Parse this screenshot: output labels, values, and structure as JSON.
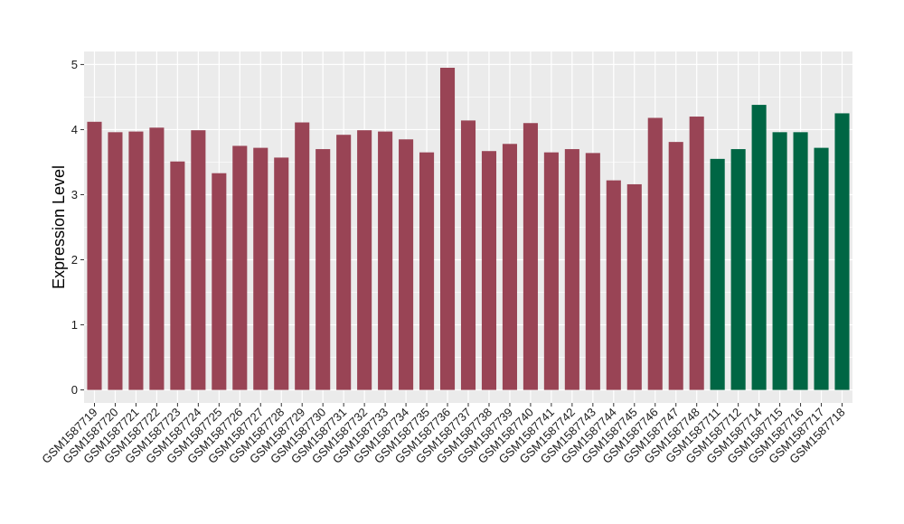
{
  "chart_data": {
    "type": "bar",
    "title": "",
    "xlabel": "",
    "ylabel": "Expression Level",
    "ylim": [
      -0.2,
      5.2
    ],
    "yticks": [
      0,
      1,
      2,
      3,
      4,
      5
    ],
    "grid": true,
    "panel_background": "#ebebeb",
    "colors": {
      "group_a": "#994455",
      "group_b": "#006644"
    },
    "categories": [
      "GSM1587719",
      "GSM1587720",
      "GSM1587721",
      "GSM1587722",
      "GSM1587723",
      "GSM1587724",
      "GSM1587725",
      "GSM1587726",
      "GSM1587727",
      "GSM1587728",
      "GSM1587729",
      "GSM1587730",
      "GSM1587731",
      "GSM1587732",
      "GSM1587733",
      "GSM1587734",
      "GSM1587735",
      "GSM1587736",
      "GSM1587737",
      "GSM1587738",
      "GSM1587739",
      "GSM1587740",
      "GSM1587741",
      "GSM1587742",
      "GSM1587743",
      "GSM1587744",
      "GSM1587745",
      "GSM1587746",
      "GSM1587747",
      "GSM1587748",
      "GSM1587711",
      "GSM1587712",
      "GSM1587714",
      "GSM1587715",
      "GSM1587716",
      "GSM1587717",
      "GSM1587718"
    ],
    "values": [
      4.12,
      3.96,
      3.97,
      4.03,
      3.51,
      3.99,
      3.33,
      3.75,
      3.72,
      3.57,
      4.11,
      3.7,
      3.92,
      3.99,
      3.97,
      3.85,
      3.65,
      4.95,
      4.14,
      3.67,
      3.78,
      4.1,
      3.65,
      3.7,
      3.64,
      3.22,
      3.16,
      4.18,
      3.81,
      4.2,
      3.55,
      3.7,
      4.38,
      3.96,
      3.96,
      3.72,
      4.25
    ],
    "groups": [
      "group_a",
      "group_a",
      "group_a",
      "group_a",
      "group_a",
      "group_a",
      "group_a",
      "group_a",
      "group_a",
      "group_a",
      "group_a",
      "group_a",
      "group_a",
      "group_a",
      "group_a",
      "group_a",
      "group_a",
      "group_a",
      "group_a",
      "group_a",
      "group_a",
      "group_a",
      "group_a",
      "group_a",
      "group_a",
      "group_a",
      "group_a",
      "group_a",
      "group_a",
      "group_a",
      "group_b",
      "group_b",
      "group_b",
      "group_b",
      "group_b",
      "group_b",
      "group_b"
    ]
  }
}
